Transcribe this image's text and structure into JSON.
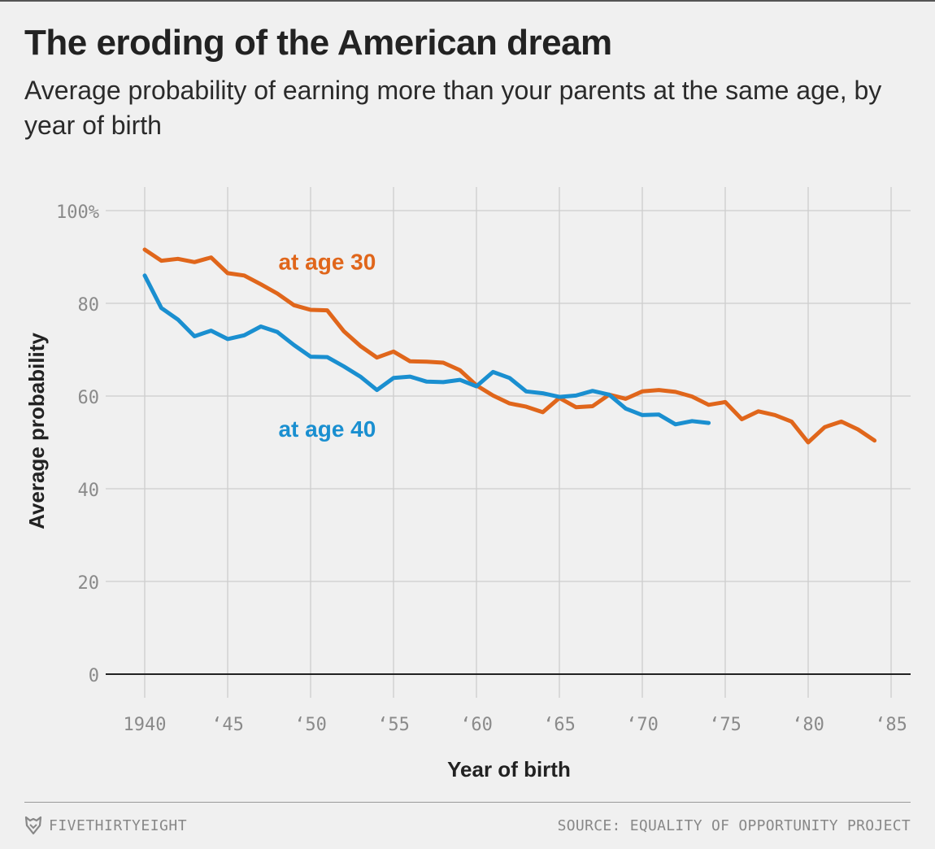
{
  "header": {
    "title": "The eroding of the American dream",
    "subtitle": "Average probability of earning more than your parents at the same age, by year of birth"
  },
  "footer": {
    "brand": "FIVETHIRTYEIGHT",
    "source": "SOURCE: EQUALITY OF OPPORTUNITY PROJECT"
  },
  "colors": {
    "age30": "#e0661b",
    "age40": "#1a8fd0",
    "grid": "#cdcdcd",
    "baseline": "#222222",
    "tick_text": "#8a8a8a"
  },
  "chart_data": {
    "type": "line",
    "title": "The eroding of the American dream",
    "subtitle": "Average probability of earning more than your parents at the same age, by year of birth",
    "xlabel": "Year of birth",
    "ylabel": "Average probability",
    "xlim": [
      1938,
      1987
    ],
    "ylim": [
      0,
      100
    ],
    "x_ticks": [
      1940,
      1945,
      1950,
      1955,
      1960,
      1965,
      1970,
      1975,
      1980,
      1985
    ],
    "x_tick_labels": [
      "1940",
      "‘45",
      "‘50",
      "‘55",
      "‘60",
      "‘65",
      "‘70",
      "‘75",
      "‘80",
      "‘85"
    ],
    "y_ticks": [
      0,
      20,
      40,
      60,
      80,
      100
    ],
    "y_tick_labels": [
      "0",
      "20",
      "40",
      "60",
      "80",
      "100%"
    ],
    "grid": true,
    "series": [
      {
        "name": "at age 30",
        "label_anchor": [
          1951,
          89
        ],
        "x": [
          1940,
          1941,
          1942,
          1943,
          1944,
          1945,
          1946,
          1947,
          1948,
          1949,
          1950,
          1951,
          1952,
          1953,
          1954,
          1955,
          1956,
          1957,
          1958,
          1959,
          1960,
          1961,
          1962,
          1963,
          1964,
          1965,
          1966,
          1967,
          1968,
          1969,
          1970,
          1971,
          1972,
          1973,
          1974,
          1975,
          1976,
          1977,
          1978,
          1979,
          1980,
          1981,
          1982,
          1983,
          1984
        ],
        "values": [
          91.6,
          89.2,
          89.6,
          88.9,
          89.9,
          86.5,
          86.0,
          84.1,
          82.1,
          79.6,
          78.6,
          78.5,
          74.0,
          70.8,
          68.3,
          69.6,
          67.5,
          67.4,
          67.2,
          65.6,
          62.3,
          60.1,
          58.4,
          57.7,
          56.5,
          59.6,
          57.6,
          57.8,
          60.3,
          59.4,
          61.0,
          61.3,
          60.9,
          59.9,
          58.1,
          58.7,
          55.0,
          56.7,
          55.9,
          54.5,
          50.0,
          53.3,
          54.5,
          52.8,
          50.4
        ]
      },
      {
        "name": "at age 40",
        "label_anchor": [
          1951,
          53
        ],
        "x": [
          1940,
          1941,
          1942,
          1943,
          1944,
          1945,
          1946,
          1947,
          1948,
          1949,
          1950,
          1951,
          1952,
          1953,
          1954,
          1955,
          1956,
          1957,
          1958,
          1959,
          1960,
          1961,
          1962,
          1963,
          1964,
          1965,
          1966,
          1967,
          1968,
          1969,
          1970,
          1971,
          1972,
          1973,
          1974
        ],
        "values": [
          86.0,
          79.0,
          76.5,
          72.9,
          74.1,
          72.3,
          73.1,
          75.0,
          73.8,
          71.0,
          68.5,
          68.4,
          66.4,
          64.2,
          61.3,
          63.9,
          64.2,
          63.1,
          63.0,
          63.5,
          62.1,
          65.2,
          63.9,
          61.0,
          60.6,
          59.8,
          60.1,
          61.1,
          60.3,
          57.3,
          55.9,
          56.0,
          53.9,
          54.6,
          54.2
        ]
      }
    ]
  }
}
